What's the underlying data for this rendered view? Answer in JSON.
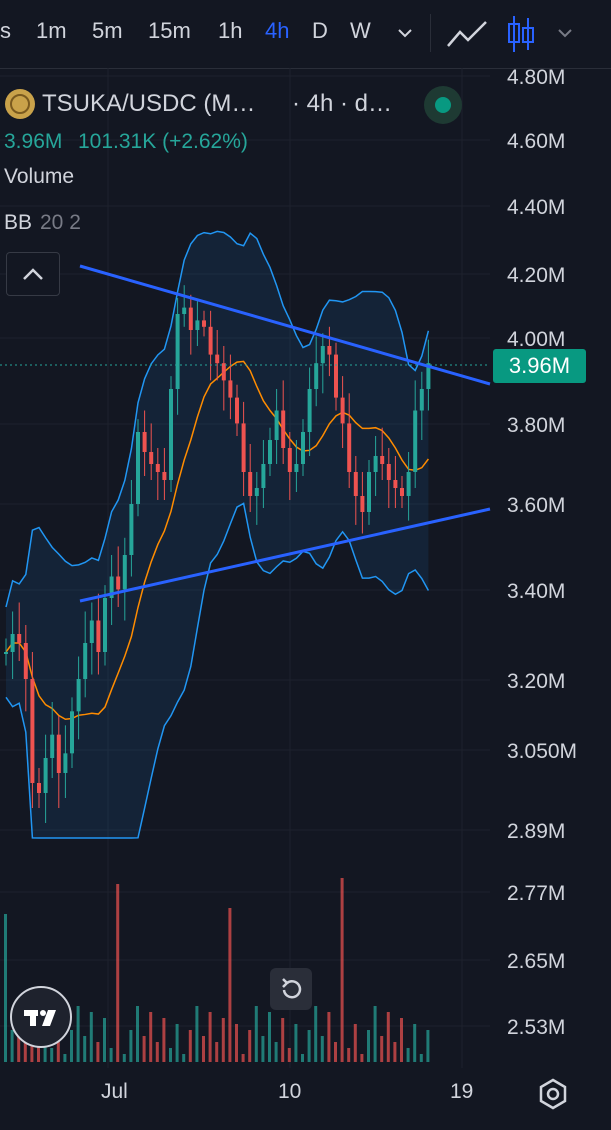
{
  "toolbar": {
    "timeframes": [
      "s",
      "1m",
      "5m",
      "15m",
      "1h",
      "4h",
      "D",
      "W"
    ],
    "active_timeframe": "4h",
    "dropdown_icon": "chevron-down-icon",
    "line_chart_icon": "line-chart-icon",
    "candle_icon": "candlestick-icon"
  },
  "legend": {
    "symbol": "TSUKA/USDC (M…",
    "interval": "· 4h · d…",
    "price": "3.96M",
    "change": "101.31K (+2.62%)",
    "volume_label": "Volume",
    "bb_label": "BB",
    "bb_params": "20 2"
  },
  "price_axis": {
    "labels": [
      "4.80M",
      "4.60M",
      "4.40M",
      "4.20M",
      "4.00M",
      "3.80M",
      "3.60M",
      "3.40M",
      "3.20M",
      "3.050M",
      "2.89M",
      "2.77M",
      "2.65M",
      "2.53M"
    ],
    "current_price": "3.96M"
  },
  "time_axis": {
    "labels": [
      "Jul",
      "10",
      "19"
    ]
  },
  "colors": {
    "background": "#131722",
    "up": "#26a69a",
    "down": "#ef5350",
    "bb_band": "#2196f3",
    "bb_basis": "#ff8c00",
    "trendline": "#2962ff",
    "active": "#2962ff"
  }
}
